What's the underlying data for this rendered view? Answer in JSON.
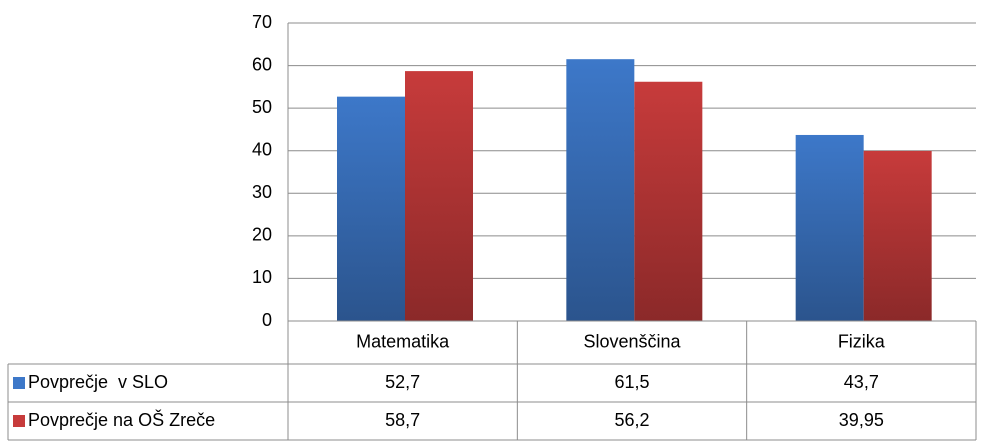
{
  "chart_data": {
    "type": "bar",
    "categories": [
      "Matematika",
      "Slovenščina",
      "Fizika"
    ],
    "series": [
      {
        "name": "Povprečje  v SLO",
        "color": "#3d78c9",
        "values": [
          52.7,
          61.5,
          43.7
        ],
        "value_labels": [
          "52,7",
          "61,5",
          "43,7"
        ]
      },
      {
        "name": "Povprečje na OŠ Zreče",
        "color": "#c73b3b",
        "values": [
          58.7,
          56.2,
          39.95
        ],
        "value_labels": [
          "58,7",
          "56,2",
          "39,95"
        ]
      }
    ],
    "ylim": [
      0,
      70
    ],
    "yticks": [
      0,
      10,
      20,
      30,
      40,
      50,
      60,
      70
    ],
    "grid": true
  }
}
